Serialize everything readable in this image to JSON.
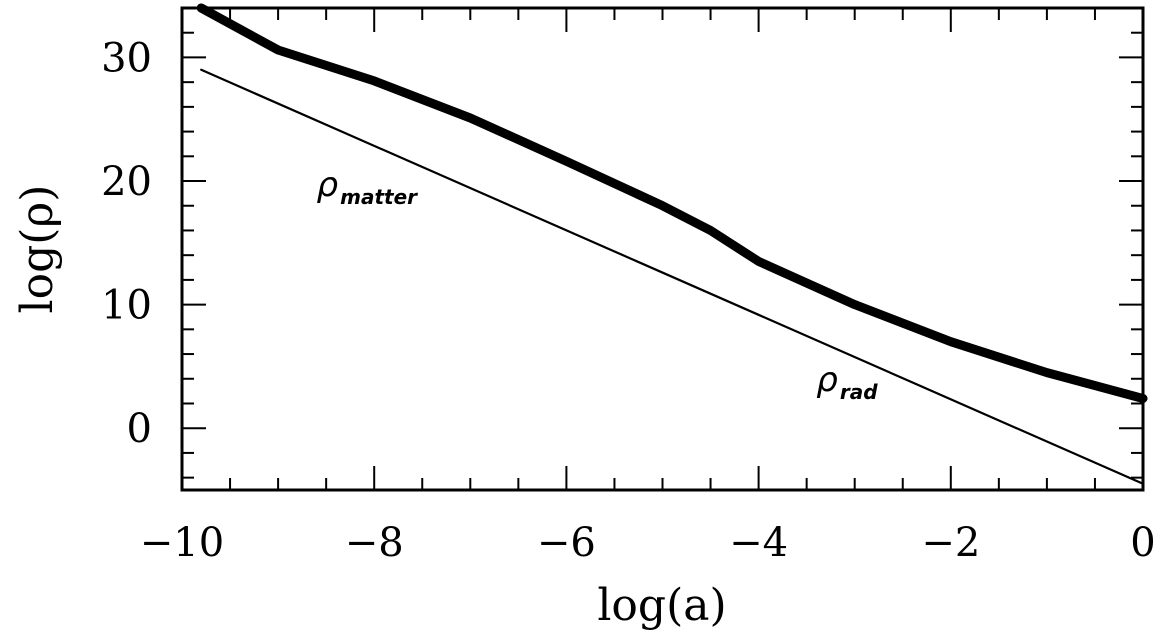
{
  "chart_data": {
    "type": "line",
    "title": "",
    "xlabel": "log(a)",
    "ylabel": "log(ρ)",
    "xlim": [
      -10,
      0
    ],
    "ylim": [
      -5,
      34
    ],
    "xticks": [
      -10,
      -8,
      -6,
      -4,
      -2,
      0
    ],
    "xtick_labels": [
      "−10",
      "−8",
      "−6",
      "−4",
      "−2",
      "0"
    ],
    "yticks": [
      0,
      10,
      20,
      30
    ],
    "ytick_labels": [
      "0",
      "10",
      "20",
      "30"
    ],
    "grid": false,
    "series": [
      {
        "x": [
          -9.8,
          -9,
          -8,
          -7,
          -6,
          -5,
          -4.5,
          -4,
          -3,
          -2,
          -1,
          0
        ],
        "y": [
          34.0,
          30.6,
          28.1,
          25.1,
          21.6,
          18.0,
          16.0,
          13.5,
          10.0,
          7.0,
          4.5,
          2.4
        ],
        "style": "thick"
      },
      {
        "x": [
          -9.8,
          0
        ],
        "y": [
          29.0,
          -4.5
        ],
        "style": "thin"
      }
    ],
    "annotations": [
      {
        "main": "ρ",
        "sub": "matter",
        "x": -8.6,
        "y": 18.8
      },
      {
        "main": "ρ",
        "sub": "rad",
        "x": -3.4,
        "y": 3.0
      }
    ]
  }
}
